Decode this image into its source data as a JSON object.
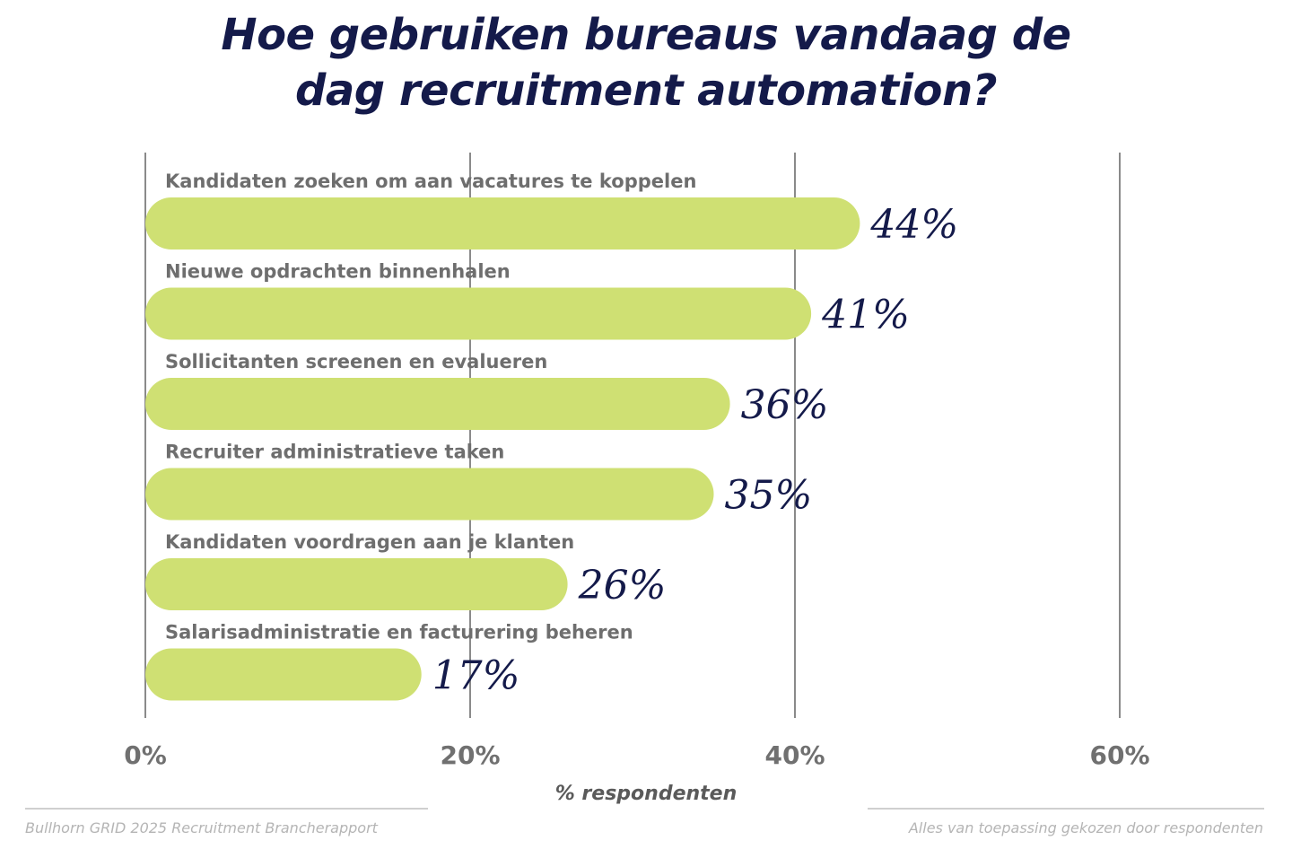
{
  "chart_data": {
    "type": "bar",
    "orientation": "horizontal",
    "title_lines": [
      "Hoe gebruiken bureaus vandaag de",
      "dag recruitment automation?"
    ],
    "categories": [
      "Kandidaten zoeken om aan vacatures te koppelen",
      "Nieuwe opdrachten binnenhalen",
      "Sollicitanten screenen en evalueren",
      "Recruiter administratieve taken",
      "Kandidaten voordragen aan je klanten",
      "Salarisadministratie en facturering beheren"
    ],
    "values": [
      44,
      41,
      36,
      35,
      26,
      17
    ],
    "value_labels": [
      "44%",
      "41%",
      "36%",
      "35%",
      "26%",
      "17%"
    ],
    "x_ticks": [
      0,
      20,
      40,
      60
    ],
    "x_tick_labels": [
      "0%",
      "20%",
      "40%",
      "60%"
    ],
    "xlabel": "% respondenten",
    "xlim": [
      0,
      60
    ],
    "grid": true,
    "bar_color": "#cfe073",
    "title_color": "#141a4a",
    "value_color": "#141a4a"
  },
  "footer": {
    "source": "Bullhorn GRID 2025 Recruitment Brancherapport",
    "note": "Alles van toepassing gekozen door respondenten"
  }
}
